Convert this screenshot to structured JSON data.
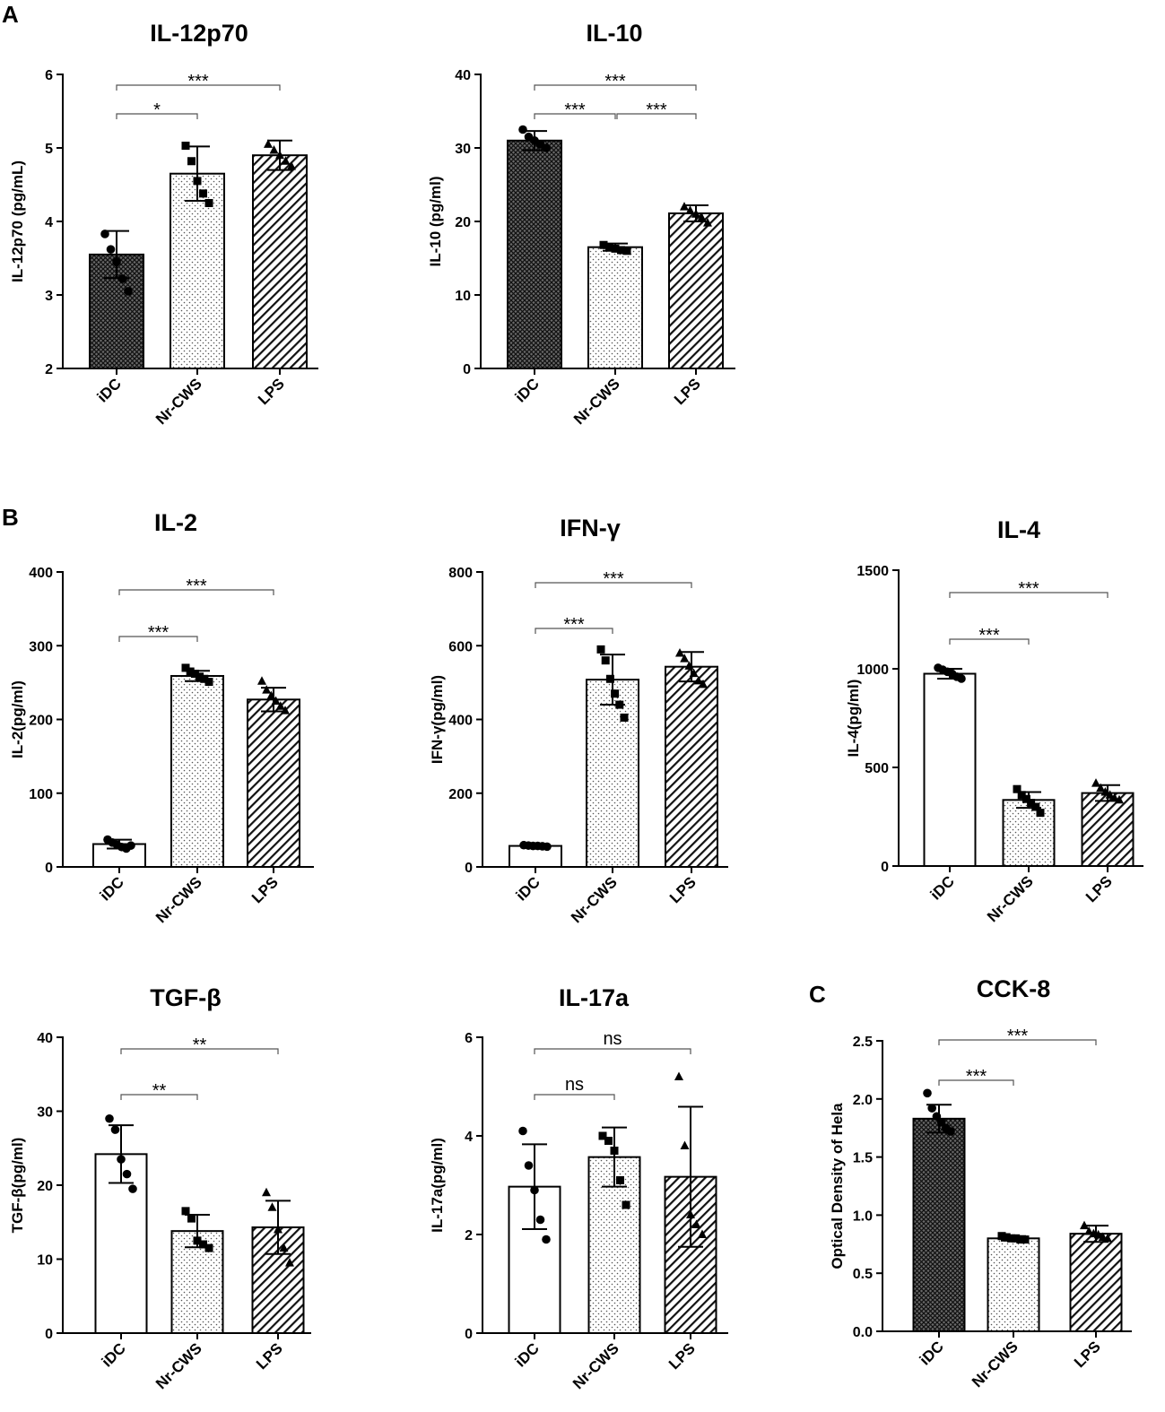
{
  "figure": {
    "panel_labels": [
      "A",
      "B",
      "C"
    ]
  },
  "chart_data": [
    {
      "type": "bar",
      "panel": "A",
      "title": "IL-12p70",
      "ylabel": "IL-12p70 (pg/mL)",
      "xlabel": "",
      "categories": [
        "iDC",
        "Nr-CWS",
        "LPS"
      ],
      "values": [
        3.55,
        4.65,
        4.9
      ],
      "errors": [
        0.32,
        0.37,
        0.2
      ],
      "points": [
        [
          3.83,
          3.62,
          3.45,
          3.22,
          3.05
        ],
        [
          5.03,
          4.82,
          4.55,
          4.38,
          4.25
        ],
        [
          5.05,
          4.97,
          4.9,
          4.82,
          4.75
        ]
      ],
      "ylim": [
        2,
        6
      ],
      "yticks": [
        2,
        3,
        4,
        5,
        6
      ],
      "ytick_labels": [
        "2",
        "3",
        "4",
        "5",
        "6"
      ],
      "comparisons": [
        {
          "from": 0,
          "to": 1,
          "label": "*"
        },
        {
          "from": 0,
          "to": 2,
          "label": "***"
        }
      ],
      "fills": [
        "crosshatch",
        "dots",
        "diagonal"
      ],
      "markers": [
        "circle",
        "square",
        "triangle"
      ]
    },
    {
      "type": "bar",
      "panel": "A",
      "title": "IL-10",
      "ylabel": "IL-10 (pg/ml)",
      "xlabel": "",
      "categories": [
        "iDC",
        "Nr-CWS",
        "LPS"
      ],
      "values": [
        31.0,
        16.5,
        21.1
      ],
      "errors": [
        1.3,
        0.5,
        1.1
      ],
      "points": [
        [
          32.5,
          31.5,
          31.0,
          30.5,
          30.0
        ],
        [
          16.8,
          16.5,
          16.3,
          16.1,
          16.0
        ],
        [
          22.0,
          21.5,
          21.0,
          20.5,
          19.8
        ]
      ],
      "ylim": [
        0,
        40
      ],
      "yticks": [
        0,
        10,
        20,
        30,
        40
      ],
      "ytick_labels": [
        "0",
        "10",
        "20",
        "30",
        "40"
      ],
      "comparisons": [
        {
          "from": 0,
          "to": 1,
          "label": "***"
        },
        {
          "from": 1,
          "to": 2,
          "label": "***"
        },
        {
          "from": 0,
          "to": 2,
          "label": "***"
        }
      ],
      "fills": [
        "crosshatch",
        "dots",
        "diagonal"
      ],
      "markers": [
        "circle",
        "square",
        "triangle"
      ]
    },
    {
      "type": "bar",
      "panel": "B",
      "title": "IL-2",
      "ylabel": "IL-2(pg/ml)",
      "xlabel": "",
      "categories": [
        "iDC",
        "Nr-CWS",
        "LPS"
      ],
      "values": [
        31,
        259,
        227
      ],
      "errors": [
        6,
        7,
        16
      ],
      "points": [
        [
          37,
          33,
          30,
          27,
          25,
          29
        ],
        [
          270,
          265,
          262,
          258,
          255,
          251
        ],
        [
          252,
          240,
          232,
          225,
          218,
          212
        ]
      ],
      "ylim": [
        0,
        400
      ],
      "yticks": [
        0,
        100,
        200,
        300,
        400
      ],
      "ytick_labels": [
        "0",
        "100",
        "200",
        "300",
        "400"
      ],
      "comparisons": [
        {
          "from": 0,
          "to": 1,
          "label": "***"
        },
        {
          "from": 0,
          "to": 2,
          "label": "***"
        }
      ],
      "fills": [
        "white",
        "dots",
        "diagonal"
      ],
      "markers": [
        "circle",
        "square",
        "triangle"
      ]
    },
    {
      "type": "bar",
      "panel": "B",
      "title": "IFN-γ",
      "ylabel": "IFN-γ(pg/ml)",
      "xlabel": "",
      "categories": [
        "iDC",
        "Nr-CWS",
        "LPS"
      ],
      "values": [
        57,
        508,
        543
      ],
      "errors": [
        4,
        68,
        40
      ],
      "points": [
        [
          59,
          58,
          57,
          57,
          56,
          55
        ],
        [
          590,
          560,
          510,
          470,
          440,
          405
        ],
        [
          580,
          565,
          545,
          525,
          505,
          495
        ]
      ],
      "ylim": [
        0,
        800
      ],
      "yticks": [
        0,
        200,
        400,
        600,
        800
      ],
      "ytick_labels": [
        "0",
        "200",
        "400",
        "600",
        "800"
      ],
      "comparisons": [
        {
          "from": 0,
          "to": 1,
          "label": "***"
        },
        {
          "from": 0,
          "to": 2,
          "label": "***"
        }
      ],
      "fills": [
        "white",
        "dots",
        "diagonal"
      ],
      "markers": [
        "circle",
        "square",
        "triangle"
      ]
    },
    {
      "type": "bar",
      "panel": "B",
      "title": "IL-4",
      "ylabel": "IL-4(pg/ml)",
      "xlabel": "",
      "categories": [
        "iDC",
        "Nr-CWS",
        "LPS"
      ],
      "values": [
        975,
        335,
        370
      ],
      "errors": [
        25,
        40,
        40
      ],
      "points": [
        [
          1005,
          995,
          985,
          975,
          960,
          950
        ],
        [
          390,
          360,
          340,
          320,
          300,
          270
        ],
        [
          420,
          395,
          375,
          360,
          345,
          335
        ]
      ],
      "ylim": [
        0,
        1500
      ],
      "yticks": [
        0,
        500,
        1000,
        1500
      ],
      "ytick_labels": [
        "0",
        "500",
        "1000",
        "1500"
      ],
      "comparisons": [
        {
          "from": 0,
          "to": 1,
          "label": "***"
        },
        {
          "from": 0,
          "to": 2,
          "label": "***"
        }
      ],
      "fills": [
        "white",
        "dots",
        "diagonal"
      ],
      "markers": [
        "circle",
        "square",
        "triangle"
      ]
    },
    {
      "type": "bar",
      "panel": "B",
      "title": "TGF-β",
      "ylabel": "TGF-β(pg/ml)",
      "xlabel": "",
      "categories": [
        "iDC",
        "Nr-CWS",
        "LPS"
      ],
      "values": [
        24.2,
        13.8,
        14.3
      ],
      "errors": [
        3.9,
        2.2,
        3.6
      ],
      "points": [
        [
          29.0,
          27.5,
          23.5,
          21.5,
          19.5
        ],
        [
          16.5,
          15.5,
          12.5,
          12.0,
          11.5
        ],
        [
          19.0,
          17.0,
          14.0,
          11.5,
          9.5
        ]
      ],
      "ylim": [
        0,
        40
      ],
      "yticks": [
        0,
        10,
        20,
        30,
        40
      ],
      "ytick_labels": [
        "0",
        "10",
        "20",
        "30",
        "40"
      ],
      "comparisons": [
        {
          "from": 0,
          "to": 1,
          "label": "**"
        },
        {
          "from": 0,
          "to": 2,
          "label": "**"
        }
      ],
      "fills": [
        "white",
        "dots",
        "diagonal"
      ],
      "markers": [
        "circle",
        "square",
        "triangle"
      ]
    },
    {
      "type": "bar",
      "panel": "B",
      "title": "IL-17a",
      "ylabel": "IL-17a(pg/ml)",
      "xlabel": "",
      "categories": [
        "iDC",
        "Nr-CWS",
        "LPS"
      ],
      "values": [
        2.97,
        3.57,
        3.17
      ],
      "errors": [
        0.86,
        0.6,
        1.42
      ],
      "points": [
        [
          4.1,
          3.4,
          2.9,
          2.3,
          1.9
        ],
        [
          4.0,
          3.9,
          3.7,
          3.1,
          2.6
        ],
        [
          5.2,
          3.8,
          2.4,
          2.2,
          2.0
        ]
      ],
      "ylim": [
        0,
        6
      ],
      "yticks": [
        0,
        2,
        4,
        6
      ],
      "ytick_labels": [
        "0",
        "2",
        "4",
        "6"
      ],
      "comparisons": [
        {
          "from": 0,
          "to": 1,
          "label": "ns"
        },
        {
          "from": 0,
          "to": 2,
          "label": "ns"
        }
      ],
      "fills": [
        "white",
        "dots",
        "diagonal"
      ],
      "markers": [
        "circle",
        "square",
        "triangle"
      ]
    },
    {
      "type": "bar",
      "panel": "C",
      "title": "CCK-8",
      "ylabel": "Optical Density of Hela",
      "xlabel": "",
      "categories": [
        "iDC",
        "Nr-CWS",
        "LPS"
      ],
      "values": [
        1.83,
        0.8,
        0.84
      ],
      "errors": [
        0.12,
        0.02,
        0.07
      ],
      "points": [
        [
          2.05,
          1.92,
          1.85,
          1.8,
          1.75,
          1.72
        ],
        [
          0.82,
          0.81,
          0.8,
          0.8,
          0.79,
          0.79
        ],
        [
          0.91,
          0.86,
          0.84,
          0.83,
          0.81,
          0.8
        ]
      ],
      "ylim": [
        0,
        2.5
      ],
      "yticks": [
        0,
        0.5,
        1.0,
        1.5,
        2.0,
        2.5
      ],
      "ytick_labels": [
        "0.0",
        "0.5",
        "1.0",
        "1.5",
        "2.0",
        "2.5"
      ],
      "comparisons": [
        {
          "from": 0,
          "to": 1,
          "label": "***"
        },
        {
          "from": 0,
          "to": 2,
          "label": "***"
        }
      ],
      "fills": [
        "crosshatch",
        "dots",
        "diagonal"
      ],
      "markers": [
        "circle",
        "square",
        "triangle"
      ]
    }
  ]
}
